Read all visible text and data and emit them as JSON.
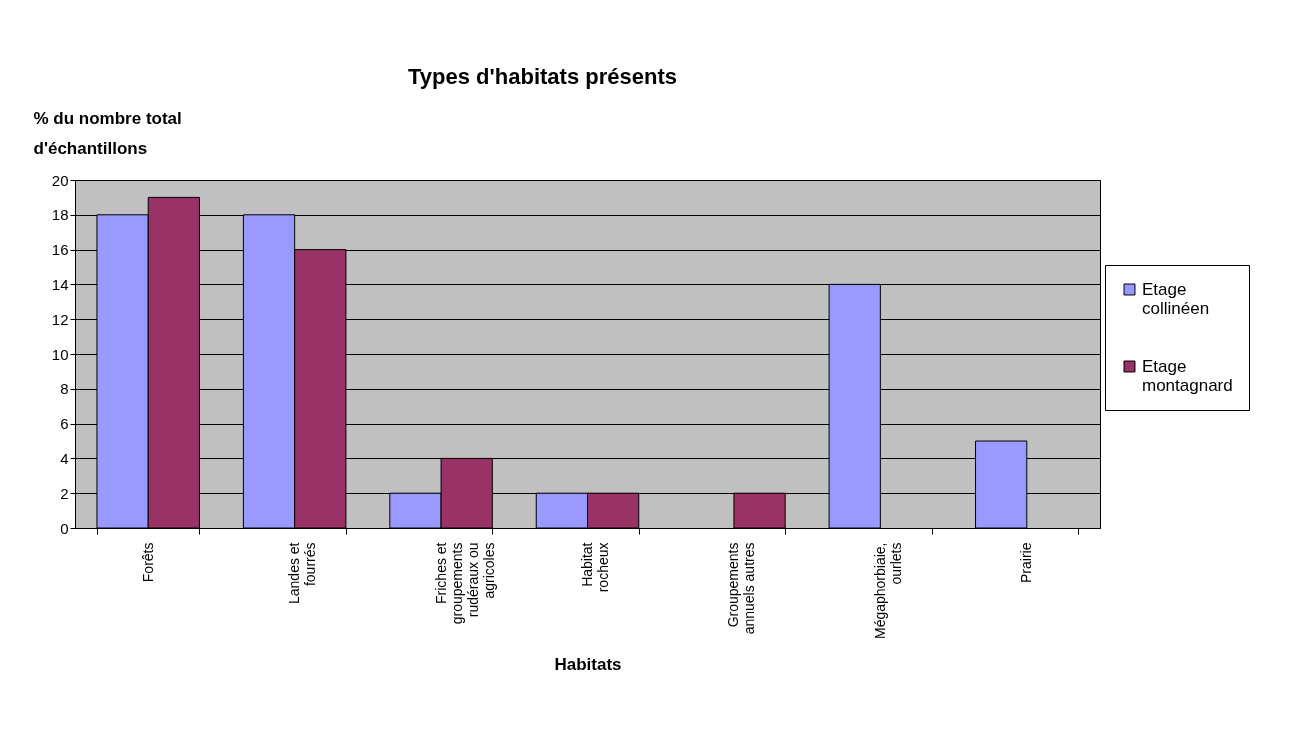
{
  "chart_data": {
    "type": "bar",
    "title": "Types d'habitats présents",
    "xlabel": "Habitats",
    "ylabel": "% du nombre total d'échantillons",
    "categories": [
      "Forêts",
      "Landes et fourrés",
      "Friches et groupements rudéraux ou agricoles",
      "Habitat rocheux",
      "Groupements annuels autres",
      "Mégaphorbiaie, ourlets",
      "Prairie"
    ],
    "series": [
      {
        "name": "Etage collinéen",
        "color": "#9999ff",
        "values": [
          18,
          18,
          2,
          2,
          null,
          14,
          5
        ]
      },
      {
        "name": "Etage montagnard",
        "color": "#993366",
        "values": [
          19,
          16,
          4,
          2,
          2,
          null,
          null
        ]
      }
    ],
    "ylim": [
      0,
      20
    ],
    "yticks": [
      0,
      2,
      4,
      6,
      8,
      10,
      12,
      14,
      16,
      18,
      20
    ],
    "grid": "y",
    "legend": "right"
  }
}
